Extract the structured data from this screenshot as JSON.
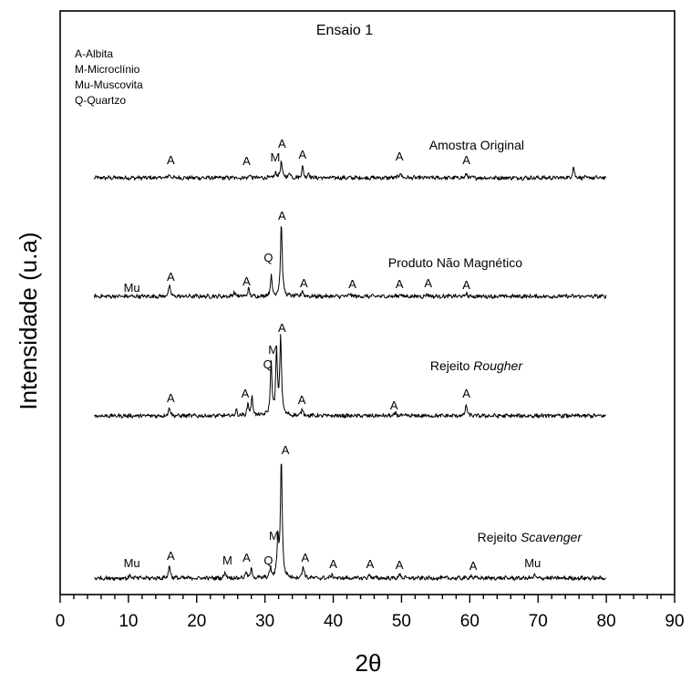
{
  "chart_data": {
    "type": "line",
    "title": "Ensaio 1",
    "xlabel": "2θ",
    "ylabel": "Intensidade (u.a)",
    "xlim": [
      0,
      90
    ],
    "x_ticks": [
      0,
      10,
      20,
      30,
      40,
      50,
      60,
      70,
      80,
      90
    ],
    "x_range": [
      5,
      80
    ],
    "grid": false,
    "legend": [
      "A-Albita",
      "M-Microclínio",
      "Mu-Muscovita",
      "Q-Quartzo"
    ],
    "legend_position": "top-left",
    "series": [
      {
        "name": "Rejeito Scavenger",
        "name_main": "Rejeito ",
        "name_italic": "Scavenger",
        "offset": 3,
        "peaks": [
          {
            "x": 16,
            "h": 4
          },
          {
            "x": 27.8,
            "h": 3
          },
          {
            "x": 31.6,
            "h": 6
          },
          {
            "x": 32.4,
            "h": 18
          },
          {
            "x": 33.6,
            "h": 6
          },
          {
            "x": 35.5,
            "h": 12
          },
          {
            "x": 36.4,
            "h": 5
          },
          {
            "x": 49.8,
            "h": 6
          },
          {
            "x": 59.5,
            "h": 4
          },
          {
            "x": 75.2,
            "h": 12
          }
        ],
        "labels": [
          {
            "text": "A",
            "x": 16.2,
            "y": 15
          },
          {
            "text": "A",
            "x": 27.3,
            "y": 14
          },
          {
            "text": "M",
            "x": 31.5,
            "y": 18
          },
          {
            "text": "A",
            "x": 32.5,
            "y": 33
          },
          {
            "text": "A",
            "x": 35.5,
            "y": 21
          },
          {
            "text": "A",
            "x": 49.7,
            "y": 19
          },
          {
            "text": "A",
            "x": 59.5,
            "y": 15
          }
        ]
      },
      {
        "name": "Rejeito Rougher",
        "name_main": "Rejeito ",
        "name_italic": "Rougher",
        "offset": 2,
        "peaks": [
          {
            "x": 16,
            "h": 12
          },
          {
            "x": 25.5,
            "h": 5
          },
          {
            "x": 27.6,
            "h": 8
          },
          {
            "x": 30.9,
            "h": 22
          },
          {
            "x": 32.4,
            "h": 82
          },
          {
            "x": 35.5,
            "h": 6
          },
          {
            "x": 42.5,
            "h": 3
          },
          {
            "x": 49.8,
            "h": 3
          },
          {
            "x": 53.8,
            "h": 3
          },
          {
            "x": 59.5,
            "h": 3
          }
        ],
        "labels": [
          {
            "text": "Mu",
            "x": 10.5,
            "y": 5
          },
          {
            "text": "A",
            "x": 16.2,
            "y": 17
          },
          {
            "text": "A",
            "x": 27.3,
            "y": 12
          },
          {
            "text": "Q",
            "x": 30.5,
            "y": 38
          },
          {
            "text": "A",
            "x": 32.5,
            "y": 84
          },
          {
            "text": "A",
            "x": 35.7,
            "y": 10
          },
          {
            "text": "A",
            "x": 42.8,
            "y": 9
          },
          {
            "text": "A",
            "x": 49.7,
            "y": 9
          },
          {
            "text": "A",
            "x": 53.9,
            "y": 10
          },
          {
            "text": "A",
            "x": 59.5,
            "y": 8
          }
        ]
      },
      {
        "name": "Produto Não Magnético",
        "name_main": "Produto Não Magnético",
        "name_italic": "",
        "offset": 1,
        "peaks": [
          {
            "x": 16,
            "h": 10
          },
          {
            "x": 25.8,
            "h": 6
          },
          {
            "x": 27.5,
            "h": 12
          },
          {
            "x": 28.1,
            "h": 20
          },
          {
            "x": 30.9,
            "h": 56
          },
          {
            "x": 31.7,
            "h": 68
          },
          {
            "x": 32.3,
            "h": 86
          },
          {
            "x": 35.5,
            "h": 8
          },
          {
            "x": 49.2,
            "h": 3
          },
          {
            "x": 59.5,
            "h": 12
          }
        ],
        "labels": [
          {
            "text": "A",
            "x": 16.2,
            "y": 15
          },
          {
            "text": "A",
            "x": 27.1,
            "y": 20
          },
          {
            "text": "Q",
            "x": 30.4,
            "y": 52
          },
          {
            "text": "M",
            "x": 31.2,
            "y": 68
          },
          {
            "text": "A",
            "x": 32.5,
            "y": 92
          },
          {
            "text": "A",
            "x": 35.4,
            "y": 13
          },
          {
            "text": "A",
            "x": 48.9,
            "y": 7
          },
          {
            "text": "A",
            "x": 59.5,
            "y": 20
          }
        ]
      },
      {
        "name": "Amostra Original",
        "name_main": "Amostra Original",
        "name_italic": "",
        "offset": 0,
        "peaks": [
          {
            "x": 10.3,
            "h": 3
          },
          {
            "x": 16,
            "h": 14
          },
          {
            "x": 24.2,
            "h": 7
          },
          {
            "x": 27.2,
            "h": 6
          },
          {
            "x": 28,
            "h": 10
          },
          {
            "x": 30.8,
            "h": 10
          },
          {
            "x": 31.9,
            "h": 42
          },
          {
            "x": 32.4,
            "h": 131
          },
          {
            "x": 35.6,
            "h": 14
          },
          {
            "x": 39.8,
            "h": 4
          },
          {
            "x": 45.3,
            "h": 4
          },
          {
            "x": 49.8,
            "h": 5
          },
          {
            "x": 60.2,
            "h": 3
          },
          {
            "x": 69.5,
            "h": 3
          }
        ],
        "labels": [
          {
            "text": "Mu",
            "x": 10.5,
            "y": 12
          },
          {
            "text": "A",
            "x": 16.2,
            "y": 20
          },
          {
            "text": "M",
            "x": 24.5,
            "y": 15
          },
          {
            "text": "A",
            "x": 27.3,
            "y": 18
          },
          {
            "text": "Q",
            "x": 30.5,
            "y": 15
          },
          {
            "text": "M",
            "x": 31.3,
            "y": 42
          },
          {
            "text": "A",
            "x": 33.0,
            "y": 136
          },
          {
            "text": "A",
            "x": 35.9,
            "y": 18
          },
          {
            "text": "A",
            "x": 40.0,
            "y": 11
          },
          {
            "text": "A",
            "x": 45.4,
            "y": 11
          },
          {
            "text": "A",
            "x": 49.7,
            "y": 10
          },
          {
            "text": "A",
            "x": 60.5,
            "y": 9
          },
          {
            "text": "Mu",
            "x": 69.2,
            "y": 12
          }
        ]
      }
    ]
  }
}
